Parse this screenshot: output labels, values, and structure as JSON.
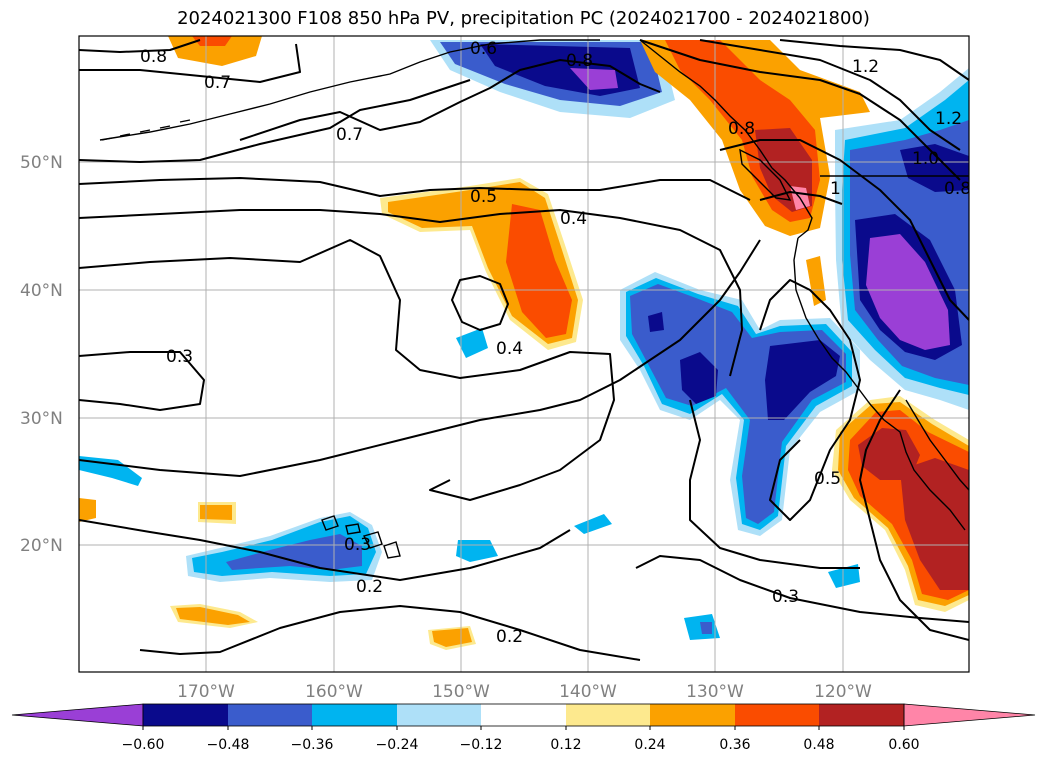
{
  "title": "2024021300 F108 850 hPa PV, precipitation PC (2024021700 - 2024021800)",
  "lat_labels": [
    "50°N",
    "40°N",
    "30°N",
    "20°N"
  ],
  "lon_labels": [
    "170°W",
    "160°W",
    "150°W",
    "140°W",
    "130°W",
    "120°W"
  ],
  "contour_labels": [
    "0.8",
    "0.7",
    "0.7",
    "0.6",
    "0.8",
    "0.5",
    "0.4",
    "0.4",
    "0.3",
    "0.3",
    "0.2",
    "0.2",
    "0.3",
    "0.5",
    "1.2",
    "1.2",
    "1.0",
    "0.8",
    "1",
    "0.8"
  ],
  "colorbar": {
    "tick_labels": [
      "−0.60",
      "−0.48",
      "−0.36",
      "−0.24",
      "−0.12",
      "0.12",
      "0.24",
      "0.36",
      "0.48",
      "0.60"
    ],
    "colors": [
      "#9a3fd6",
      "#0a0a8c",
      "#3a5ccc",
      "#00b4f0",
      "#aee0f8",
      "#ffffff",
      "#fde98e",
      "#fba100",
      "#fa4c00",
      "#b22222",
      "#ff85a8"
    ]
  }
}
